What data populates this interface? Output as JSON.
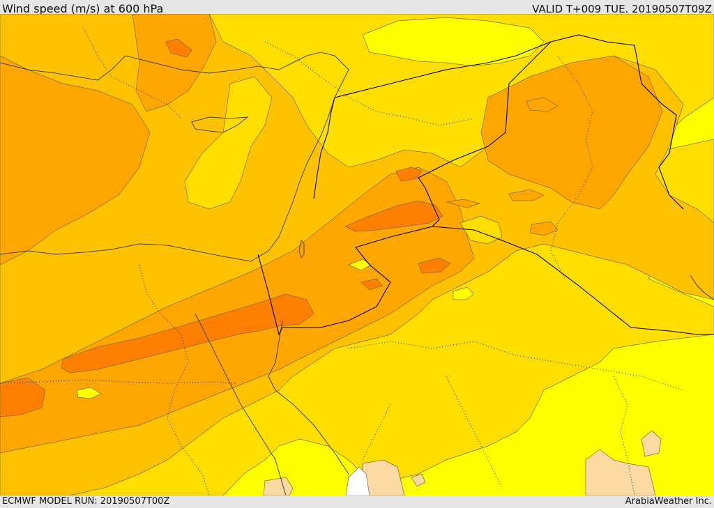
{
  "header": {
    "title": "Wind speed (m/s) at 600 hPa",
    "valid_time": "VALID T+009 TUE. 20190507T09Z"
  },
  "footer": {
    "model_run": "ECMWF MODEL RUN: 20190507T00Z",
    "credit": "ArabiaWeather Inc."
  },
  "map": {
    "colors": {
      "band_1": "#ffff00",
      "band_2": "#ffde00",
      "band_3": "#ffc200",
      "band_4": "#ffa600",
      "band_5": "#ff8000",
      "land_low": "#fad9a3",
      "no_data": "#ffffff"
    }
  }
}
